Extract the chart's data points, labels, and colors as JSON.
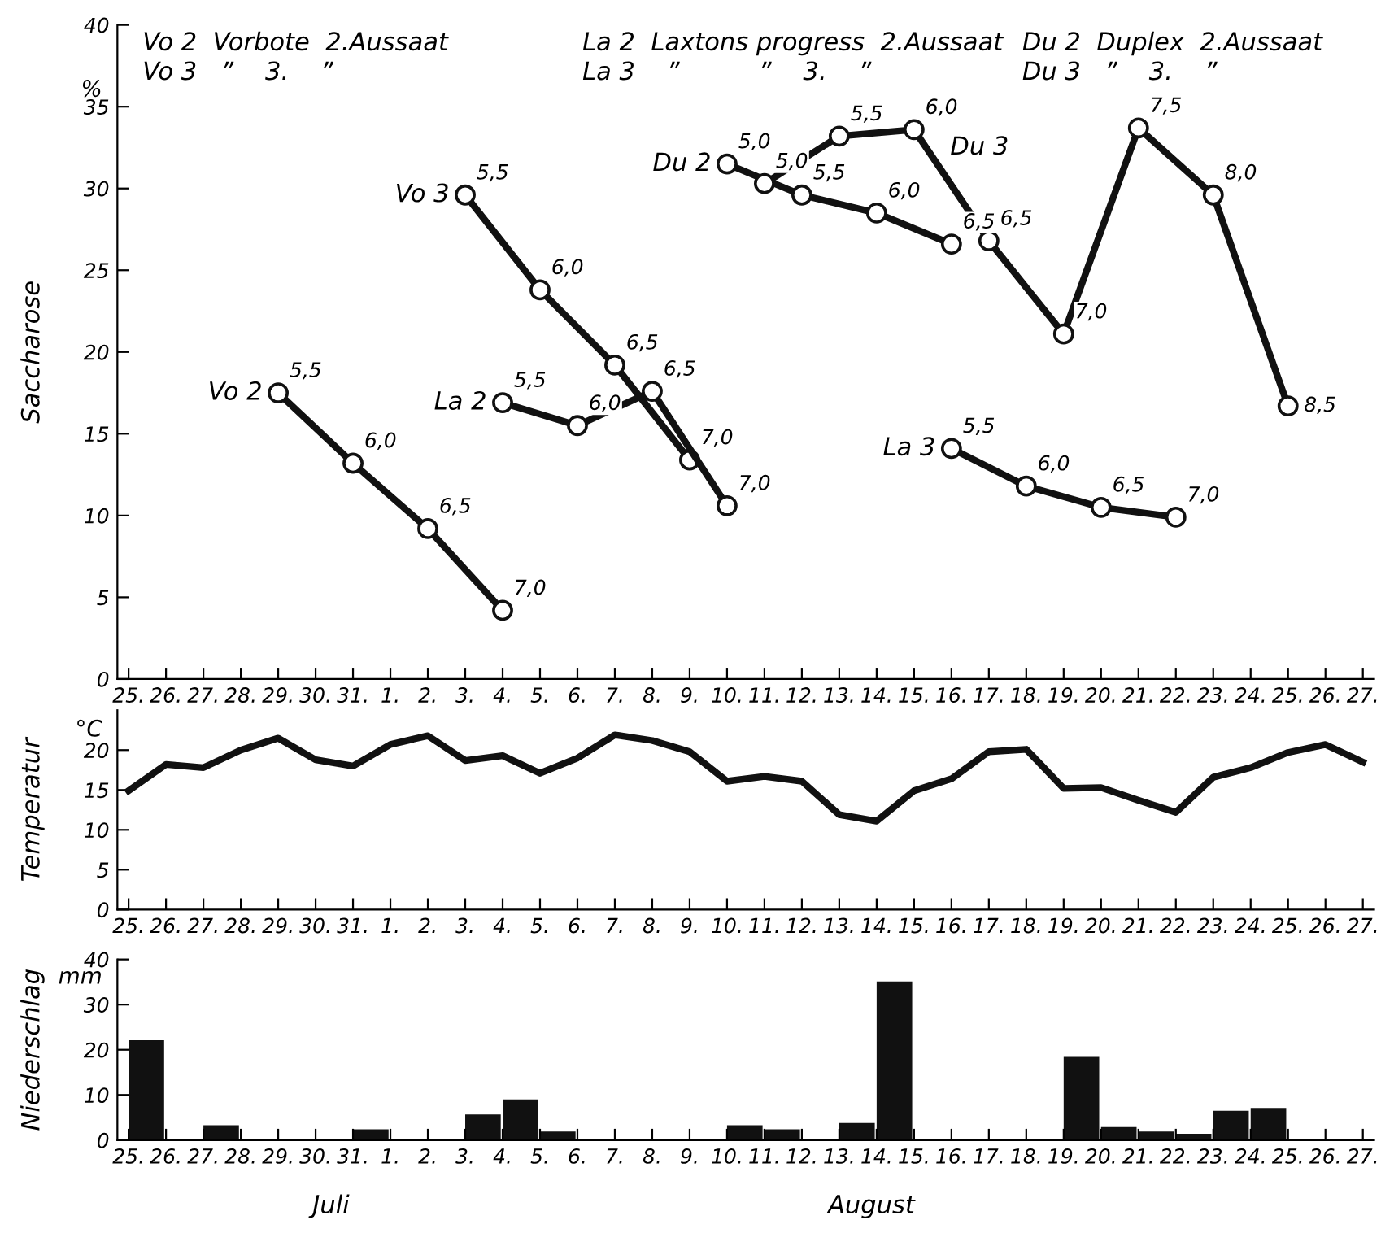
{
  "chart_data": [
    {
      "type": "line",
      "ylabel": "Saccharose",
      "annotations": [
        "%",
        "Vo 2  Vorbote  2.Aussaat",
        "Vo 3   ”    3.    ”",
        "La 2  Laxtons progress  2.Aussaat",
        "La 3    ”          ”    3.    ”",
        "Du 2  Duplex  2.Aussaat",
        "Du 3   ”    3.    ”",
        {
          "text": "5,5",
          "x": "29.",
          "y": 17.5
        },
        {
          "text": "6,0",
          "x": "31.",
          "y": 13.2
        },
        {
          "text": "6,5",
          "x": "2.",
          "y": 9.2
        },
        {
          "text": "7,0",
          "x": "4.",
          "y": 4.2
        },
        {
          "text": "5,5",
          "x": "3.",
          "y": 29.6
        },
        {
          "text": "6,0",
          "x": "5.",
          "y": 23.8
        },
        {
          "text": "6,5",
          "x": "7.",
          "y": 19.2
        },
        {
          "text": "7,0",
          "x": "9.",
          "y": 13.4
        },
        {
          "text": "5,5",
          "x": "4.",
          "y": 16.9
        },
        {
          "text": "6,0",
          "x": "6.",
          "y": 15.5
        },
        {
          "text": "6,5",
          "x": "8.",
          "y": 17.6
        },
        {
          "text": "7,0",
          "x": "10.",
          "y": 10.6
        },
        {
          "text": "5,5",
          "x": "16.",
          "y": 14.1
        },
        {
          "text": "6,0",
          "x": "18.",
          "y": 11.8
        },
        {
          "text": "6,5",
          "x": "20.",
          "y": 10.5
        },
        {
          "text": "7,0",
          "x": "22.",
          "y": 9.9
        },
        {
          "text": "5,0",
          "x": "10.",
          "y": 31.5
        },
        {
          "text": "5,5",
          "x": "12.",
          "y": 29.6
        },
        {
          "text": "6,0",
          "x": "14.",
          "y": 28.5
        },
        {
          "text": "6,5",
          "x": "16.",
          "y": 26.6
        },
        {
          "text": "5,0",
          "x": "11.",
          "y": 30.3
        },
        {
          "text": "5,5",
          "x": "13.",
          "y": 33.2
        },
        {
          "text": "6,0",
          "x": "15.",
          "y": 33.6
        },
        {
          "text": "6,5",
          "x": "17.",
          "y": 26.8
        },
        {
          "text": "7,0",
          "x": "19.",
          "y": 21.1
        },
        {
          "text": "7,5",
          "x": "21.",
          "y": 33.7
        },
        {
          "text": "8,0",
          "x": "23.",
          "y": 29.6
        },
        "8,5"
      ],
      "categories": [
        "25.",
        "26.",
        "27.",
        "28.",
        "29.",
        "30.",
        "31.",
        "1.",
        "2.",
        "3.",
        "4.",
        "5.",
        "6.",
        "7.",
        "8.",
        "9.",
        "10.",
        "11.",
        "12.",
        "13.",
        "14.",
        "15.",
        "16.",
        "17.",
        "18.",
        "19.",
        "20.",
        "21.",
        "22.",
        "23.",
        "24.",
        "25.",
        "26.",
        "27."
      ],
      "ylim": [
        0,
        40
      ],
      "yticks": [
        0,
        5,
        10,
        15,
        20,
        25,
        30,
        35,
        40
      ],
      "marker": "circle",
      "legend": false,
      "grid": false,
      "series": [
        {
          "name": "Vo 2",
          "color": "#111111",
          "values": [
            null,
            null,
            null,
            null,
            17.5,
            null,
            13.2,
            null,
            9.2,
            null,
            4.2,
            null,
            null,
            null,
            null,
            null,
            null,
            null,
            null,
            null,
            null,
            null,
            null,
            null,
            null,
            null,
            null,
            null,
            null,
            null,
            null,
            null,
            null,
            null
          ]
        },
        {
          "name": "Vo 3",
          "color": "#111111",
          "values": [
            null,
            null,
            null,
            null,
            null,
            null,
            null,
            null,
            null,
            29.6,
            null,
            23.8,
            null,
            19.2,
            null,
            13.4,
            null,
            null,
            null,
            null,
            null,
            null,
            null,
            null,
            null,
            null,
            null,
            null,
            null,
            null,
            null,
            null,
            null,
            null
          ]
        },
        {
          "name": "La 2",
          "color": "#111111",
          "values": [
            null,
            null,
            null,
            null,
            null,
            null,
            null,
            null,
            null,
            null,
            16.9,
            null,
            15.5,
            null,
            17.6,
            null,
            10.6,
            null,
            null,
            null,
            null,
            null,
            null,
            null,
            null,
            null,
            null,
            null,
            null,
            null,
            null,
            null,
            null,
            null
          ]
        },
        {
          "name": "La 3",
          "color": "#111111",
          "values": [
            null,
            null,
            null,
            null,
            null,
            null,
            null,
            null,
            null,
            null,
            null,
            null,
            null,
            null,
            null,
            null,
            null,
            null,
            null,
            null,
            null,
            null,
            14.1,
            null,
            11.8,
            null,
            10.5,
            null,
            9.9,
            null,
            null,
            null,
            null,
            null
          ]
        },
        {
          "name": "Du 2",
          "color": "#111111",
          "values": [
            null,
            null,
            null,
            null,
            null,
            null,
            null,
            null,
            null,
            null,
            null,
            null,
            null,
            null,
            null,
            null,
            31.5,
            null,
            29.6,
            null,
            28.5,
            null,
            26.6,
            null,
            null,
            null,
            null,
            null,
            null,
            null,
            null,
            null,
            null,
            null
          ]
        },
        {
          "name": "Du 3",
          "color": "#111111",
          "values": [
            null,
            null,
            null,
            null,
            null,
            null,
            null,
            null,
            null,
            null,
            null,
            null,
            null,
            null,
            null,
            null,
            null,
            30.3,
            null,
            33.2,
            null,
            33.6,
            null,
            26.8,
            null,
            21.1,
            null,
            33.7,
            null,
            29.6,
            null,
            16.7,
            null,
            null
          ]
        }
      ]
    },
    {
      "type": "line",
      "ylabel": "Temperatur",
      "annotations": [
        "°C"
      ],
      "categories": [
        "25.",
        "26.",
        "27.",
        "28.",
        "29.",
        "30.",
        "31.",
        "1.",
        "2.",
        "3.",
        "4.",
        "5.",
        "6.",
        "7.",
        "8.",
        "9.",
        "10.",
        "11.",
        "12.",
        "13.",
        "14.",
        "15.",
        "16.",
        "17.",
        "18.",
        "19.",
        "20.",
        "21.",
        "22.",
        "23.",
        "24.",
        "25.",
        "26.",
        "27."
      ],
      "ylim": [
        0,
        25
      ],
      "yticks": [
        0,
        5,
        10,
        15,
        20
      ],
      "marker": "none",
      "legend": false,
      "grid": false,
      "series": [
        {
          "color": "#111111",
          "values": [
            14.9,
            18.2,
            17.8,
            20.0,
            21.5,
            18.8,
            18.0,
            20.7,
            21.8,
            18.7,
            19.3,
            17.1,
            19.0,
            21.9,
            21.2,
            19.8,
            16.1,
            16.7,
            16.1,
            11.9,
            11.1,
            14.9,
            16.4,
            19.8,
            20.1,
            15.2,
            15.3,
            13.7,
            12.2,
            16.6,
            17.8,
            19.7,
            20.7,
            18.5
          ]
        }
      ]
    },
    {
      "type": "bar",
      "ylabel": "Niederschlag",
      "annotations": [
        "mm",
        "Juli",
        "August"
      ],
      "categories": [
        "25.",
        "26.",
        "27.",
        "28.",
        "29.",
        "30.",
        "31.",
        "1.",
        "2.",
        "3.",
        "4.",
        "5.",
        "6.",
        "7.",
        "8.",
        "9.",
        "10.",
        "11.",
        "12.",
        "13.",
        "14.",
        "15.",
        "16.",
        "17.",
        "18.",
        "19.",
        "20.",
        "21.",
        "22.",
        "23.",
        "24.",
        "25.",
        "26.",
        "27."
      ],
      "ylim": [
        0,
        40
      ],
      "yticks": [
        0,
        10,
        20,
        30,
        40
      ],
      "legend": false,
      "grid": false,
      "series": [
        {
          "color": "#111111",
          "values": [
            22.1,
            0,
            3.3,
            0,
            0,
            0,
            2.4,
            0,
            0,
            5.7,
            9.0,
            1.9,
            0,
            0,
            0,
            0,
            3.3,
            2.4,
            0,
            3.8,
            35.1,
            0,
            0,
            0,
            0,
            18.4,
            2.9,
            1.9,
            1.4,
            6.5,
            7.1,
            0,
            0,
            0
          ]
        }
      ]
    }
  ]
}
